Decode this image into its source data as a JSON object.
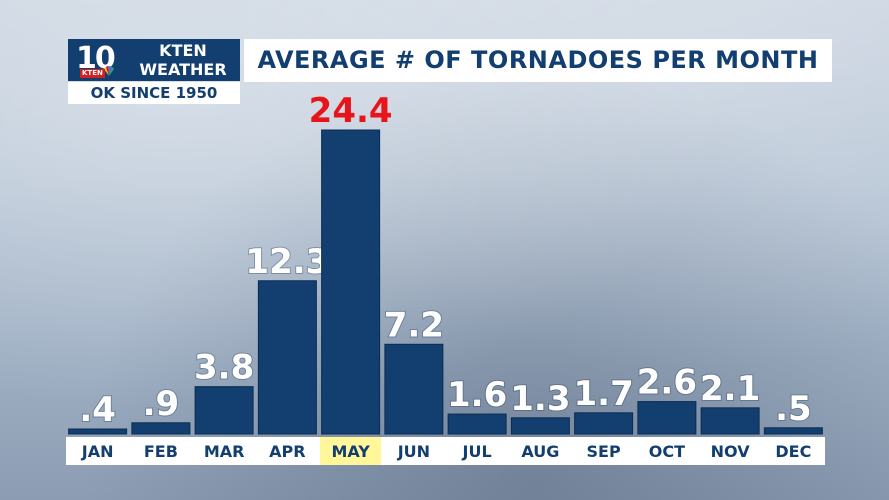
{
  "logo": {
    "number": "10",
    "station": "KTEN",
    "name_line1": "KTEN",
    "name_line2": "WEATHER",
    "brand_color": "#123f6f",
    "station_badge_color": "#d02020"
  },
  "subtitle": "OK SINCE 1950",
  "chart_data": {
    "type": "bar",
    "title": "AVERAGE # OF TORNADOES PER MONTH",
    "categories": [
      "JAN",
      "FEB",
      "MAR",
      "APR",
      "MAY",
      "JUN",
      "JUL",
      "AUG",
      "SEP",
      "OCT",
      "NOV",
      "DEC"
    ],
    "values": [
      0.4,
      0.9,
      3.8,
      12.3,
      24.4,
      7.2,
      1.6,
      1.3,
      1.7,
      2.6,
      2.1,
      0.5
    ],
    "value_labels": [
      ".4",
      ".9",
      "3.8",
      "12.3",
      "24.4",
      "7.2",
      "1.6",
      "1.3",
      "1.7",
      "2.6",
      "2.1",
      ".5"
    ],
    "highlight_index": 4,
    "ylim": [
      0,
      27
    ],
    "grid": false,
    "xlabel": "",
    "ylabel": "",
    "colors": {
      "bar": "#123f6f",
      "label": "#ffffff",
      "highlight_label": "#e8141b",
      "highlight_tick_bg": "#fff79a"
    }
  }
}
